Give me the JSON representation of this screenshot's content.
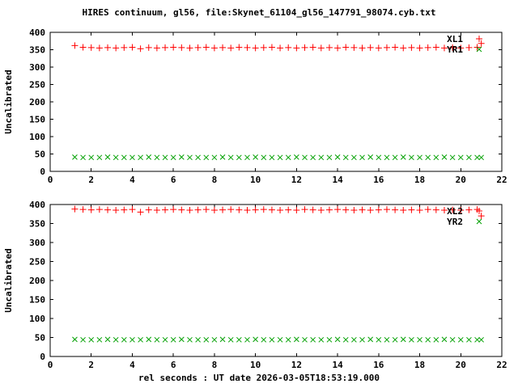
{
  "title": "HIRES continuum, gl56, file:Skynet_61104_gl56_147791_98074.cyb.txt",
  "xlabel": "rel seconds : UT date 2026-03-05T18:53:19.000",
  "colors": {
    "red": "#ff0000",
    "green": "#00a000",
    "axis": "#000000",
    "background": "#ffffff"
  },
  "chart_data": [
    {
      "type": "scatter",
      "ylabel": "Uncalibrated",
      "xlim": [
        0,
        22
      ],
      "ylim": [
        0,
        400
      ],
      "xticks": [
        0,
        2,
        4,
        6,
        8,
        10,
        12,
        14,
        16,
        18,
        20,
        22
      ],
      "yticks": [
        0,
        50,
        100,
        150,
        200,
        250,
        300,
        350,
        400
      ],
      "grid": false,
      "legend_position": "top-right",
      "legend": [
        {
          "label": "XL1",
          "marker": "plus",
          "color": "#ff0000"
        },
        {
          "label": "YR1",
          "marker": "cross",
          "color": "#00a000"
        }
      ],
      "series": [
        {
          "name": "XL1",
          "marker": "plus",
          "color": "#ff0000",
          "x": [
            1.2,
            1.6,
            2,
            2.4,
            2.8,
            3.2,
            3.6,
            4,
            4.4,
            4.8,
            5.2,
            5.6,
            6,
            6.4,
            6.8,
            7.2,
            7.6,
            8,
            8.4,
            8.8,
            9.2,
            9.6,
            10,
            10.4,
            10.8,
            11.2,
            11.6,
            12,
            12.4,
            12.8,
            13.2,
            13.6,
            14,
            14.4,
            14.8,
            15.2,
            15.6,
            16,
            16.4,
            16.8,
            17.2,
            17.6,
            18,
            18.4,
            18.8,
            19.2,
            19.6,
            20,
            20.4,
            20.8,
            21
          ],
          "y": [
            362,
            357,
            356,
            355,
            356,
            355,
            356,
            357,
            353,
            356,
            355,
            356,
            357,
            356,
            355,
            356,
            357,
            355,
            356,
            355,
            357,
            356,
            355,
            356,
            357,
            355,
            356,
            355,
            356,
            357,
            355,
            356,
            355,
            357,
            356,
            355,
            356,
            355,
            356,
            357,
            355,
            356,
            355,
            356,
            357,
            355,
            356,
            355,
            356,
            357,
            368
          ]
        },
        {
          "name": "YR1",
          "marker": "cross",
          "color": "#00a000",
          "x": [
            1.2,
            1.6,
            2,
            2.4,
            2.8,
            3.2,
            3.6,
            4,
            4.4,
            4.8,
            5.2,
            5.6,
            6,
            6.4,
            6.8,
            7.2,
            7.6,
            8,
            8.4,
            8.8,
            9.2,
            9.6,
            10,
            10.4,
            10.8,
            11.2,
            11.6,
            12,
            12.4,
            12.8,
            13.2,
            13.6,
            14,
            14.4,
            14.8,
            15.2,
            15.6,
            16,
            16.4,
            16.8,
            17.2,
            17.6,
            18,
            18.4,
            18.8,
            19.2,
            19.6,
            20,
            20.4,
            20.8,
            21
          ],
          "y": [
            41,
            40,
            40,
            40,
            41,
            40,
            40,
            40,
            40,
            41,
            40,
            40,
            40,
            41,
            40,
            40,
            40,
            40,
            41,
            40,
            40,
            40,
            41,
            40,
            40,
            40,
            40,
            41,
            40,
            40,
            40,
            40,
            41,
            40,
            40,
            40,
            41,
            40,
            40,
            40,
            41,
            40,
            40,
            40,
            40,
            41,
            40,
            40,
            40,
            40,
            40
          ]
        }
      ]
    },
    {
      "type": "scatter",
      "ylabel": "Uncalibrated",
      "xlim": [
        0,
        22
      ],
      "ylim": [
        0,
        400
      ],
      "xticks": [
        0,
        2,
        4,
        6,
        8,
        10,
        12,
        14,
        16,
        18,
        20,
        22
      ],
      "yticks": [
        0,
        50,
        100,
        150,
        200,
        250,
        300,
        350,
        400
      ],
      "grid": false,
      "legend_position": "top-right",
      "legend": [
        {
          "label": "XL2",
          "marker": "plus",
          "color": "#ff0000"
        },
        {
          "label": "YR2",
          "marker": "cross",
          "color": "#00a000"
        }
      ],
      "series": [
        {
          "name": "XL2",
          "marker": "plus",
          "color": "#ff0000",
          "x": [
            1.2,
            1.6,
            2,
            2.4,
            2.8,
            3.2,
            3.6,
            4,
            4.4,
            4.8,
            5.2,
            5.6,
            6,
            6.4,
            6.8,
            7.2,
            7.6,
            8,
            8.4,
            8.8,
            9.2,
            9.6,
            10,
            10.4,
            10.8,
            11.2,
            11.6,
            12,
            12.4,
            12.8,
            13.2,
            13.6,
            14,
            14.4,
            14.8,
            15.2,
            15.6,
            16,
            16.4,
            16.8,
            17.2,
            17.6,
            18,
            18.4,
            18.8,
            19.2,
            19.6,
            20,
            20.4,
            20.8,
            21
          ],
          "y": [
            388,
            387,
            386,
            387,
            386,
            385,
            386,
            387,
            380,
            386,
            385,
            386,
            387,
            386,
            385,
            386,
            387,
            385,
            386,
            387,
            386,
            385,
            386,
            387,
            386,
            385,
            386,
            385,
            387,
            386,
            385,
            386,
            387,
            386,
            385,
            386,
            385,
            386,
            387,
            386,
            385,
            386,
            385,
            387,
            386,
            385,
            386,
            385,
            386,
            387,
            370
          ]
        },
        {
          "name": "YR2",
          "marker": "cross",
          "color": "#00a000",
          "x": [
            1.2,
            1.6,
            2,
            2.4,
            2.8,
            3.2,
            3.6,
            4,
            4.4,
            4.8,
            5.2,
            5.6,
            6,
            6.4,
            6.8,
            7.2,
            7.6,
            8,
            8.4,
            8.8,
            9.2,
            9.6,
            10,
            10.4,
            10.8,
            11.2,
            11.6,
            12,
            12.4,
            12.8,
            13.2,
            13.6,
            14,
            14.4,
            14.8,
            15.2,
            15.6,
            16,
            16.4,
            16.8,
            17.2,
            17.6,
            18,
            18.4,
            18.8,
            19.2,
            19.6,
            20,
            20.4,
            20.8,
            21
          ],
          "y": [
            45,
            44,
            44,
            44,
            45,
            44,
            44,
            44,
            44,
            45,
            44,
            44,
            44,
            45,
            44,
            44,
            44,
            44,
            45,
            44,
            44,
            44,
            45,
            44,
            44,
            44,
            44,
            45,
            44,
            44,
            44,
            44,
            45,
            44,
            44,
            44,
            45,
            44,
            44,
            44,
            45,
            44,
            44,
            44,
            44,
            45,
            44,
            44,
            44,
            44,
            44
          ]
        }
      ]
    }
  ]
}
